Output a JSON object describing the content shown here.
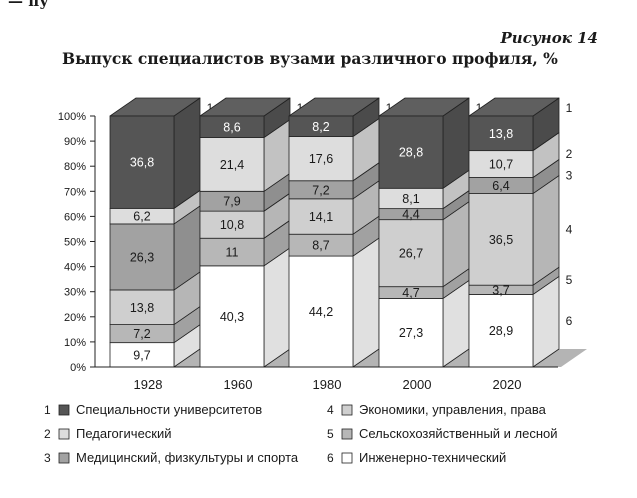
{
  "top_fragment": "— пу",
  "figure_label": "Рисунок 14",
  "title": "Выпуск специалистов вузами различного профиля, %",
  "colors": {
    "s1": "#555555",
    "s2": "#dddddd",
    "s3": "#a2a2a2",
    "s4": "#cfcfcf",
    "s5": "#b7b7b7",
    "s6": "#ffffff",
    "floor": "#b4b4b4",
    "edge": "#222222",
    "text": "#1a1a1a"
  },
  "chart_data": {
    "type": "bar",
    "subtype": "stacked-100-3d",
    "categories": [
      "1928",
      "1960",
      "1980",
      "2000",
      "2020"
    ],
    "series": [
      {
        "id": "1",
        "name": "Специальности университетов",
        "values": [
          36.8,
          8.6,
          8.2,
          28.8,
          13.8
        ]
      },
      {
        "id": "2",
        "name": "Педагогический",
        "values": [
          6.2,
          21.4,
          17.6,
          8.1,
          10.7
        ]
      },
      {
        "id": "3",
        "name": "Медицинский, физкультуры и спорта",
        "values": [
          26.3,
          7.9,
          7.2,
          4.4,
          6.4
        ]
      },
      {
        "id": "4",
        "name": "Экономики, управления, права",
        "values": [
          13.8,
          10.8,
          14.1,
          26.7,
          36.5
        ]
      },
      {
        "id": "5",
        "name": "Сельскохозяйственный и лесной",
        "values": [
          7.2,
          11.0,
          8.7,
          4.7,
          3.7
        ]
      },
      {
        "id": "6",
        "name": "Инженерно-технический",
        "values": [
          9.7,
          40.3,
          44.2,
          27.3,
          28.9
        ]
      }
    ],
    "yticks": [
      "0%",
      "10%",
      "20%",
      "30%",
      "40%",
      "50%",
      "60%",
      "70%",
      "80%",
      "90%",
      "100%"
    ],
    "ylim": [
      0,
      100
    ],
    "side_labels": [
      "1",
      "2",
      "3",
      "4",
      "5",
      "6"
    ],
    "legend": {
      "placement": "bottom",
      "items": [
        {
          "num": "1",
          "label": "Специальности университетов",
          "color": "s1"
        },
        {
          "num": "4",
          "label": "Экономики, управления, права",
          "color": "s4"
        },
        {
          "num": "2",
          "label": "Педагогический",
          "color": "s2"
        },
        {
          "num": "5",
          "label": "Сельскохозяйственный и лесной",
          "color": "s5"
        },
        {
          "num": "3",
          "label": "Медицинский, физкультуры и спорта",
          "color": "s3"
        },
        {
          "num": "6",
          "label": "Инженерно-технический",
          "color": "s6"
        }
      ]
    }
  }
}
